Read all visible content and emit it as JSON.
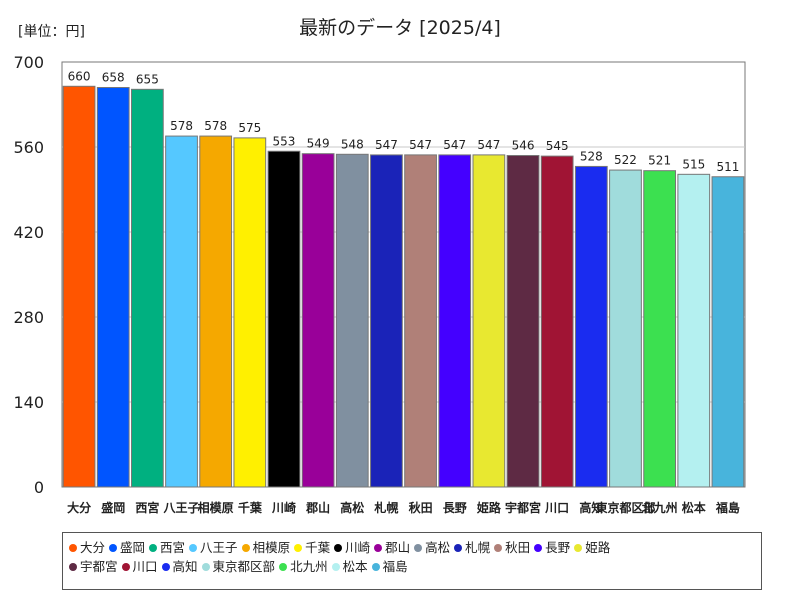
{
  "chart_data": {
    "type": "bar",
    "title": "最新のデータ [2025/4]",
    "unit_label": "[単位：円]",
    "categories": [
      "大分",
      "盛岡",
      "西宮",
      "八王子",
      "相模原",
      "千葉",
      "川崎",
      "郡山",
      "高松",
      "札幌",
      "秋田",
      "長野",
      "姫路",
      "宇都宮",
      "川口",
      "高知",
      "東京都区部",
      "北九州",
      "松本",
      "福島"
    ],
    "values": [
      660,
      658,
      655,
      578,
      578,
      575,
      553,
      549,
      548,
      547,
      547,
      547,
      547,
      546,
      545,
      528,
      522,
      521,
      515,
      511
    ],
    "colors": [
      "#ff5500",
      "#0055ff",
      "#00b080",
      "#55c8ff",
      "#f5a800",
      "#fff000",
      "#000000",
      "#990099",
      "#8090a0",
      "#1a23b8",
      "#b08078",
      "#4400ff",
      "#e8e830",
      "#5e2a44",
      "#a01434",
      "#1a2cf0",
      "#a0dcdc",
      "#3ce050",
      "#b4f0f0",
      "#48b4dc"
    ],
    "yticks": [
      0,
      140,
      280,
      420,
      560,
      700
    ],
    "ylim": [
      0,
      700
    ],
    "grid": true,
    "legend_position": "bottom"
  }
}
